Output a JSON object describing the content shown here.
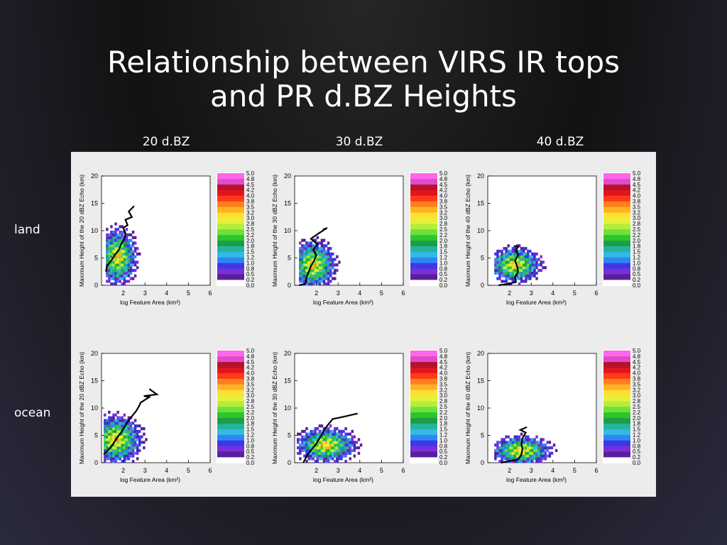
{
  "title_line1": "Relationship between VIRS IR tops",
  "title_line2": "and PR d.BZ Heights",
  "columns": [
    "20 d.BZ",
    "30 d.BZ",
    "40 d.BZ"
  ],
  "rows": [
    "land",
    "ocean"
  ],
  "chart_data": [
    {
      "type": "heatmap",
      "row": "land",
      "column": "20 d.BZ",
      "xlabel": "log Feature Area (km²)",
      "ylabel": "Maximum Height of the 20 dBZ Echo (km)",
      "xlim": [
        1,
        6
      ],
      "ylim": [
        0,
        20
      ],
      "xticks": [
        2,
        3,
        4,
        5,
        6
      ],
      "yticks": [
        0,
        5,
        10,
        15,
        20
      ],
      "blob": {
        "x_range": [
          1.2,
          3.2
        ],
        "y_range": [
          0,
          13
        ],
        "core": [
          1.7,
          5
        ]
      },
      "median_line": {
        "x": [
          1.2,
          1.25,
          1.45,
          1.6,
          1.8,
          1.9,
          2.05,
          2.1,
          2.0,
          2.2,
          2.1,
          2.4,
          2.25,
          2.5
        ],
        "y": [
          2.5,
          3.5,
          4.5,
          5.5,
          6.5,
          7.5,
          8.5,
          9.5,
          10.5,
          11,
          12,
          12.5,
          13.5,
          14.5
        ]
      },
      "colorbar": [
        0.0,
        0.2,
        0.5,
        0.8,
        1.0,
        1.2,
        1.5,
        1.8,
        2.0,
        2.2,
        2.5,
        2.8,
        3.0,
        3.2,
        3.5,
        3.8,
        4.0,
        4.2,
        4.5,
        4.8,
        5.0
      ]
    },
    {
      "type": "heatmap",
      "row": "land",
      "column": "30 d.BZ",
      "xlabel": "log Feature Area (km²)",
      "ylabel": "Maximum Height of the 30 dBZ Echo (km)",
      "xlim": [
        1,
        6
      ],
      "ylim": [
        0,
        20
      ],
      "xticks": [
        2,
        3,
        4,
        5,
        6
      ],
      "yticks": [
        0,
        5,
        10,
        15,
        20
      ],
      "blob": {
        "x_range": [
          1.2,
          3.6
        ],
        "y_range": [
          0,
          11
        ],
        "core": [
          1.8,
          3.5
        ]
      },
      "median_line": {
        "x": [
          1.2,
          1.5,
          1.55,
          1.65,
          1.75,
          1.9,
          2.0,
          1.85,
          2.05,
          1.75,
          2.1,
          2.5,
          2.3
        ],
        "y": [
          0,
          0.3,
          1.5,
          2.5,
          3.5,
          4.5,
          5.5,
          6.5,
          7.5,
          8.5,
          9.5,
          10.5,
          10.2
        ]
      },
      "colorbar": [
        0.0,
        0.2,
        0.5,
        0.8,
        1.0,
        1.2,
        1.5,
        1.8,
        2.0,
        2.2,
        2.5,
        2.8,
        3.0,
        3.2,
        3.5,
        3.8,
        4.0,
        4.2,
        4.5,
        4.8,
        5.0
      ]
    },
    {
      "type": "heatmap",
      "row": "land",
      "column": "40 d.BZ",
      "xlabel": "log Feature Area (km²)",
      "ylabel": "Maximum Height of the 40 dBZ Echo (km)",
      "xlim": [
        1,
        6
      ],
      "ylim": [
        0,
        20
      ],
      "xticks": [
        2,
        3,
        4,
        5,
        6
      ],
      "yticks": [
        0,
        5,
        10,
        15,
        20
      ],
      "blob": {
        "x_range": [
          1.3,
          4.1
        ],
        "y_range": [
          0,
          8
        ],
        "core": [
          2.2,
          3.5
        ]
      },
      "median_line": {
        "x": [
          1.5,
          2.0,
          2.3,
          2.25,
          2.4,
          2.35,
          2.25,
          2.4,
          2.3,
          2.4,
          2.2
        ],
        "y": [
          0,
          0.3,
          0.6,
          1.5,
          2.5,
          3.5,
          4.5,
          5.5,
          6.5,
          7,
          7.2
        ]
      },
      "colorbar": [
        0.0,
        0.2,
        0.5,
        0.8,
        1.0,
        1.2,
        1.5,
        1.8,
        2.0,
        2.2,
        2.5,
        2.8,
        3.0,
        3.2,
        3.5,
        3.8,
        4.0,
        4.2,
        4.5,
        4.8,
        5.0
      ]
    },
    {
      "type": "heatmap",
      "row": "ocean",
      "column": "20 d.BZ",
      "xlabel": "log Feature Area (km²)",
      "ylabel": "Maximum Height of the 20 dBZ Echo (km)",
      "xlim": [
        1,
        6
      ],
      "ylim": [
        0,
        20
      ],
      "xticks": [
        2,
        3,
        4,
        5,
        6
      ],
      "yticks": [
        0,
        5,
        10,
        15,
        20
      ],
      "blob": {
        "x_range": [
          1.1,
          3.9
        ],
        "y_range": [
          0,
          11
        ],
        "core": [
          1.6,
          4
        ]
      },
      "median_line": {
        "x": [
          1.1,
          1.35,
          1.55,
          1.7,
          1.9,
          2.05,
          2.2,
          2.4,
          2.6,
          2.75,
          2.8,
          3.2,
          2.95,
          3.55,
          3.2
        ],
        "y": [
          1.5,
          2.5,
          3.5,
          4.5,
          5.5,
          6.5,
          7.5,
          8.5,
          9.5,
          10.5,
          11,
          12,
          12.2,
          12.5,
          13.5
        ]
      },
      "colorbar": [
        0.0,
        0.2,
        0.5,
        0.8,
        1.0,
        1.2,
        1.5,
        1.8,
        2.0,
        2.2,
        2.5,
        2.8,
        3.0,
        3.2,
        3.5,
        3.8,
        4.0,
        4.2,
        4.5,
        4.8,
        5.0
      ]
    },
    {
      "type": "heatmap",
      "row": "ocean",
      "column": "30 d.BZ",
      "xlabel": "log Feature Area (km²)",
      "ylabel": "Maximum Height of the 30 dBZ Echo (km)",
      "xlim": [
        1,
        6
      ],
      "ylim": [
        0,
        20
      ],
      "xticks": [
        2,
        3,
        4,
        5,
        6
      ],
      "yticks": [
        0,
        5,
        10,
        15,
        20
      ],
      "blob": {
        "x_range": [
          1.1,
          4.3
        ],
        "y_range": [
          0,
          8
        ],
        "core": [
          2.4,
          3
        ]
      },
      "median_line": {
        "x": [
          1.4,
          1.6,
          1.8,
          2.0,
          2.15,
          2.3,
          2.45,
          2.55,
          2.65,
          2.75,
          3.0,
          3.35,
          3.9
        ],
        "y": [
          0,
          1.5,
          2.5,
          3.5,
          4.5,
          5.5,
          6.5,
          7.0,
          7.5,
          8.0,
          8.2,
          8.5,
          9.0
        ]
      },
      "colorbar": [
        0.0,
        0.2,
        0.5,
        0.8,
        1.0,
        1.2,
        1.5,
        1.8,
        2.0,
        2.2,
        2.5,
        2.8,
        3.0,
        3.2,
        3.5,
        3.8,
        4.0,
        4.2,
        4.5,
        4.8,
        5.0
      ]
    },
    {
      "type": "heatmap",
      "row": "ocean",
      "column": "40 d.BZ",
      "xlabel": "log Feature Area (km²)",
      "ylabel": "Maximum Height of the 40 dBZ Echo (km)",
      "xlim": [
        1,
        6
      ],
      "ylim": [
        0,
        20
      ],
      "xticks": [
        2,
        3,
        4,
        5,
        6
      ],
      "yticks": [
        0,
        5,
        10,
        15,
        20
      ],
      "blob": {
        "x_range": [
          1.3,
          4.5
        ],
        "y_range": [
          0,
          6.5
        ],
        "core": [
          2.5,
          2
        ]
      },
      "median_line": {
        "x": [
          1.6,
          2.0,
          2.4,
          2.55,
          2.6,
          2.55,
          2.6,
          2.75,
          2.5,
          2.8
        ],
        "y": [
          0,
          0.3,
          0.6,
          1.5,
          2.5,
          3.5,
          4.5,
          5.5,
          6.0,
          6.5
        ]
      },
      "colorbar": [
        0.0,
        0.2,
        0.5,
        0.8,
        1.0,
        1.2,
        1.5,
        1.8,
        2.0,
        2.2,
        2.5,
        2.8,
        3.0,
        3.2,
        3.5,
        3.8,
        4.0,
        4.2,
        4.5,
        4.8,
        5.0
      ]
    }
  ],
  "colors": {
    "scale": [
      "#ffffff",
      "#5a1f9b",
      "#7b2fd6",
      "#3a3ae8",
      "#2f86f0",
      "#34b9e6",
      "#22b59a",
      "#1f9c4a",
      "#2cc52c",
      "#6ee03a",
      "#b4ee3a",
      "#e6f03a",
      "#ffe030",
      "#ffb224",
      "#ff7f1e",
      "#ff3a1a",
      "#e0151d",
      "#b8122a",
      "#e04cc8",
      "#ff66ee"
    ],
    "panel_bg": "#ececec"
  }
}
